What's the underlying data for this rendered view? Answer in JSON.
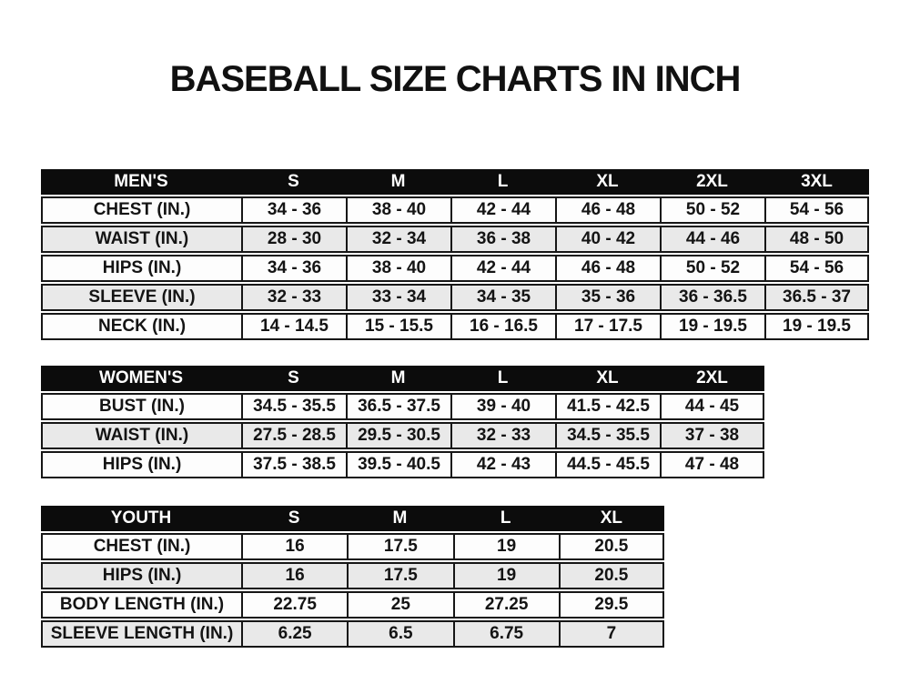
{
  "page": {
    "title": "BASEBALL SIZE CHARTS IN INCH",
    "unit": "inches"
  },
  "colors": {
    "background": "#ffffff",
    "header_bg": "#0c0c0c",
    "header_text": "#ffffff",
    "border": "#161616",
    "row_bg": "#fdfdfd",
    "row_alt_bg": "#e9e9e9"
  },
  "chart_data": [
    {
      "type": "table",
      "name": "mens",
      "columns": [
        "MEN'S",
        "S",
        "M",
        "L",
        "XL",
        "2XL",
        "3XL"
      ],
      "rows": [
        [
          "CHEST (IN.)",
          "34 - 36",
          "38 - 40",
          "42 - 44",
          "46 - 48",
          "50 - 52",
          "54 - 56"
        ],
        [
          "WAIST (IN.)",
          "28 - 30",
          "32 - 34",
          "36 - 38",
          "40 - 42",
          "44 - 46",
          "48 - 50"
        ],
        [
          "HIPS (IN.)",
          "34 - 36",
          "38 - 40",
          "42 - 44",
          "46 - 48",
          "50 - 52",
          "54 - 56"
        ],
        [
          "SLEEVE (IN.)",
          "32 - 33",
          "33 - 34",
          "34 - 35",
          "35 - 36",
          "36 - 36.5",
          "36.5 - 37"
        ],
        [
          "NECK (IN.)",
          "14 - 14.5",
          "15 - 15.5",
          "16 - 16.5",
          "17 - 17.5",
          "19 - 19.5",
          "19 - 19.5"
        ]
      ]
    },
    {
      "type": "table",
      "name": "womens",
      "columns": [
        "WOMEN'S",
        "S",
        "M",
        "L",
        "XL",
        "2XL"
      ],
      "rows": [
        [
          "BUST (IN.)",
          "34.5 - 35.5",
          "36.5 - 37.5",
          "39 - 40",
          "41.5 - 42.5",
          "44 - 45"
        ],
        [
          "WAIST (IN.)",
          "27.5 - 28.5",
          "29.5 - 30.5",
          "32 - 33",
          "34.5 - 35.5",
          "37 - 38"
        ],
        [
          "HIPS (IN.)",
          "37.5 - 38.5",
          "39.5 - 40.5",
          "42 - 43",
          "44.5 - 45.5",
          "47 - 48"
        ]
      ]
    },
    {
      "type": "table",
      "name": "youth",
      "columns": [
        "YOUTH",
        "S",
        "M",
        "L",
        "XL"
      ],
      "rows": [
        [
          "CHEST (IN.)",
          "16",
          "17.5",
          "19",
          "20.5"
        ],
        [
          "HIPS (IN.)",
          "16",
          "17.5",
          "19",
          "20.5"
        ],
        [
          "BODY LENGTH (IN.)",
          "22.75",
          "25",
          "27.25",
          "29.5"
        ],
        [
          "SLEEVE LENGTH (IN.)",
          "6.25",
          "6.5",
          "6.75",
          "7"
        ]
      ]
    }
  ]
}
